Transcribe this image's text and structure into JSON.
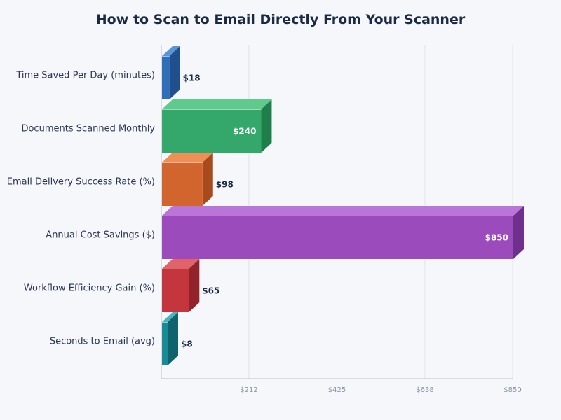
{
  "chart_data": {
    "type": "bar",
    "orientation": "horizontal",
    "title": "How to Scan to Email Directly From Your Scanner",
    "xlabel": "",
    "ylabel": "",
    "categories": [
      "Time Saved Per Day (minutes)",
      "Documents Scanned Monthly",
      "Email Delivery Success Rate (%)",
      "Annual Cost Savings ($)",
      "Workflow Efficiency Gain (%)",
      "Seconds to Email (avg)"
    ],
    "values": [
      18,
      240,
      98,
      850,
      65,
      8
    ],
    "value_labels": [
      "$18",
      "$240",
      "$98",
      "$850",
      "$65",
      "$8"
    ],
    "xlim": [
      0,
      850
    ],
    "ticks": [
      212,
      425,
      638,
      850
    ],
    "tick_labels": [
      "$212",
      "$425",
      "$638",
      "$850"
    ],
    "grid": true,
    "colors": [
      "#2f6fba",
      "#33a86a",
      "#d2652d",
      "#9b4bbb",
      "#c4363e",
      "#1a8a96"
    ],
    "top_colors": [
      "#5a95d8",
      "#5ecb8c",
      "#ef8f56",
      "#bb74d8",
      "#e0636a",
      "#47b6c0"
    ],
    "side_colors": [
      "#1f4f8c",
      "#1f7f4a",
      "#a84a1c",
      "#6f2f8c",
      "#93232a",
      "#10636c"
    ]
  }
}
